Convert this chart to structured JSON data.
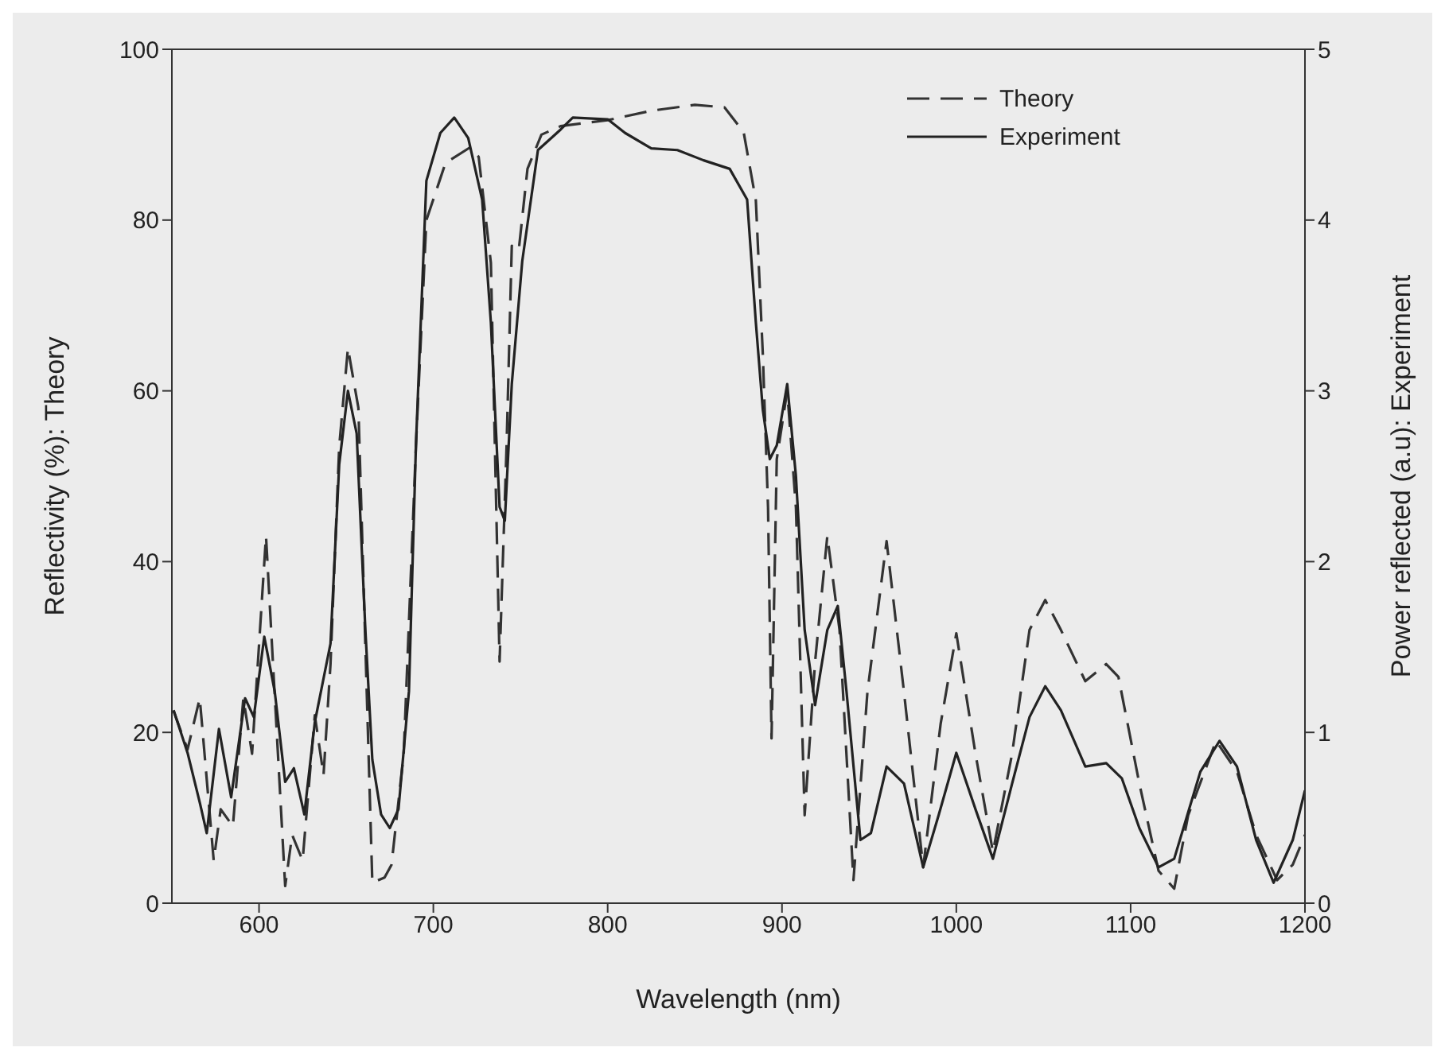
{
  "chart_data": {
    "type": "line",
    "xlabel": "Wavelength (nm)",
    "ylabel": "Reflectivity (%): Theory",
    "y2label": "Power reflected (a.u): Experiment",
    "xlim": [
      550,
      1200
    ],
    "xticks": [
      600,
      700,
      800,
      900,
      1000,
      1100,
      1200
    ],
    "ylim": [
      0,
      100
    ],
    "yticks": [
      0,
      20,
      40,
      60,
      80,
      100
    ],
    "y2lim": [
      0,
      5
    ],
    "y2ticks": [
      0,
      1,
      2,
      3,
      4,
      5
    ],
    "legend": "top right",
    "marker": "none",
    "series": [
      {
        "name": "Theory",
        "color": "#333333",
        "line_style": "dashed",
        "x": [
          551,
          559,
          566,
          574,
          578,
          585,
          591,
          596,
          604,
          615,
          619,
          625,
          632,
          637,
          641,
          646,
          651,
          657,
          665,
          672,
          676,
          683,
          690,
          696,
          707,
          721,
          726,
          733,
          738,
          742,
          745,
          749,
          754,
          762,
          773,
          800,
          825,
          850,
          867,
          878,
          885,
          889,
          892,
          894,
          897,
          903,
          908,
          913,
          919,
          926,
          933,
          941,
          949,
          960,
          970,
          981,
          991,
          1000,
          1011,
          1021,
          1032,
          1042,
          1051,
          1060,
          1074,
          1086,
          1093,
          1105,
          1116,
          1125,
          1133,
          1149,
          1161,
          1172,
          1184,
          1193,
          1200
        ],
        "values": [
          22.5,
          18,
          24,
          5,
          11,
          9,
          24,
          17.5,
          43,
          2,
          8,
          5,
          22,
          15,
          28,
          53.5,
          65,
          58,
          2.4,
          3,
          4.5,
          17.5,
          53.5,
          80,
          86.7,
          88.5,
          87.4,
          75,
          28.3,
          53.5,
          77,
          76.5,
          86,
          90,
          91,
          91.7,
          92.8,
          93.5,
          93.2,
          90.3,
          82.3,
          64.3,
          46.3,
          19.3,
          52,
          60,
          46.3,
          10.3,
          28.3,
          43,
          32,
          2.7,
          24.7,
          42.4,
          24.7,
          4.2,
          21,
          31.6,
          17.5,
          6,
          17.5,
          32,
          35.5,
          32,
          26,
          28,
          26.5,
          14,
          3.8,
          1.7,
          10.3,
          19,
          15.4,
          8,
          2.7,
          4.5,
          8
        ]
      },
      {
        "name": "Experiment",
        "color": "#222222",
        "line_style": "solid",
        "axis": "y2",
        "x": [
          551,
          559,
          566,
          570,
          577,
          584,
          592,
          597,
          603,
          609,
          615,
          620,
          626,
          632,
          641,
          646,
          651,
          656,
          661,
          665,
          670,
          675,
          680,
          686,
          690,
          696,
          704,
          712,
          720,
          728,
          733,
          738,
          741,
          745,
          751,
          760,
          773,
          780,
          800,
          810,
          825,
          840,
          855,
          870,
          880,
          885,
          889,
          893,
          897,
          903,
          908,
          913,
          919,
          926,
          932,
          937,
          945,
          951,
          960,
          970,
          981,
          990,
          1000,
          1011,
          1021,
          1032,
          1042,
          1051,
          1060,
          1074,
          1086,
          1095,
          1105,
          1116,
          1125,
          1140,
          1151,
          1161,
          1172,
          1182,
          1193,
          1200
        ],
        "values": [
          1.13,
          0.88,
          0.59,
          0.41,
          1.02,
          0.62,
          1.2,
          1.09,
          1.56,
          1.24,
          0.71,
          0.79,
          0.52,
          1.06,
          1.52,
          2.57,
          3.0,
          2.75,
          1.6,
          0.84,
          0.52,
          0.44,
          0.55,
          1.24,
          2.68,
          4.23,
          4.51,
          4.6,
          4.48,
          4.12,
          3.4,
          2.32,
          2.24,
          3.04,
          3.76,
          4.41,
          4.53,
          4.6,
          4.59,
          4.51,
          4.42,
          4.41,
          4.35,
          4.3,
          4.12,
          3.4,
          2.89,
          2.6,
          2.68,
          3.04,
          2.5,
          1.6,
          1.16,
          1.6,
          1.74,
          1.24,
          0.37,
          0.41,
          0.8,
          0.7,
          0.21,
          0.52,
          0.88,
          0.55,
          0.26,
          0.7,
          1.09,
          1.27,
          1.13,
          0.8,
          0.82,
          0.73,
          0.44,
          0.21,
          0.26,
          0.77,
          0.95,
          0.8,
          0.37,
          0.12,
          0.37,
          0.66
        ]
      }
    ]
  }
}
